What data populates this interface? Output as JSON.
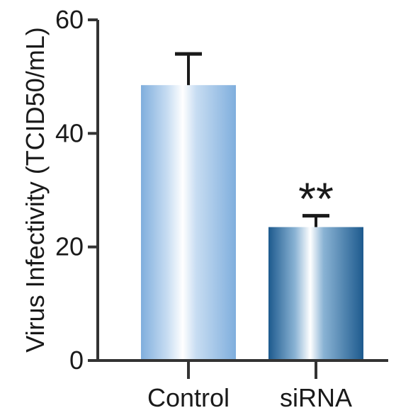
{
  "chart_data": {
    "type": "bar",
    "title": "",
    "xlabel": "",
    "ylabel": "Virus Infectivity (TCID50/mL)",
    "ylim": [
      0,
      60
    ],
    "yticks": [
      0,
      20,
      40,
      60
    ],
    "categories": [
      "Control",
      "siRNA"
    ],
    "values": [
      48.5,
      23.5
    ],
    "errors": [
      5.5,
      2.0
    ],
    "significance": [
      "",
      "**"
    ],
    "grid": false,
    "legend": "none",
    "bar_colors": [
      {
        "edge": "#7faedd",
        "mid": "#ffffff",
        "inner": "#c8ddf2"
      },
      {
        "edge": "#1d5a8e",
        "mid": "#ffffff",
        "inner": "#8ab3d4"
      }
    ],
    "axis_color": "#333333",
    "error_bar_color": "#1a1a1a"
  }
}
